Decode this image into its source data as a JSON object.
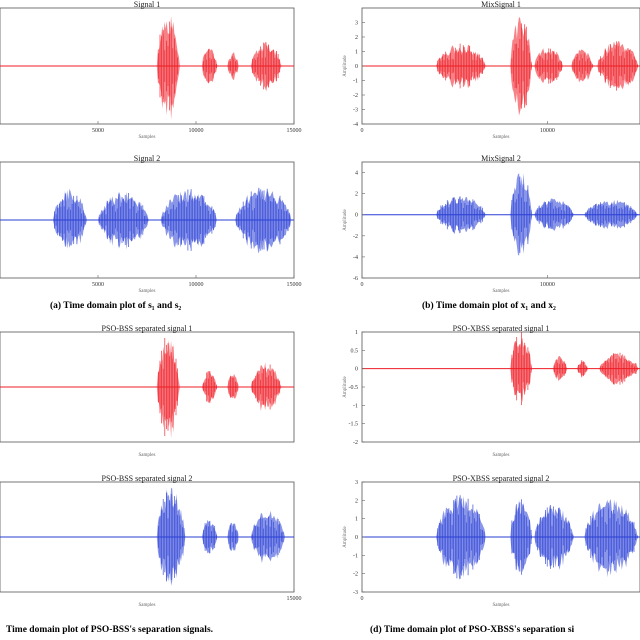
{
  "colors": {
    "red": "#ee1c25",
    "blue": "#2a3fd6",
    "frame": "#555555",
    "axis": "#666666"
  },
  "captions": {
    "a": "(a) Time domain plot of s₁ and s₂",
    "b": "(b) Time domain plot of x₁ and x₂",
    "c": "Time domain plot of PSO-BSS's separation signals.",
    "d": "(d) Time domain plot of PSO-XBSS's separation si"
  },
  "chart_data": [
    {
      "id": "s1",
      "type": "line",
      "title": "Signal 1",
      "color": "red",
      "xlabel": "Samples",
      "ylabel": "",
      "xlim": [
        0,
        15000
      ],
      "ylim": [
        -1,
        1
      ],
      "xticks": [
        5000,
        10000,
        15000
      ],
      "xtick_labels": [
        "5000",
        "10000",
        "15000"
      ],
      "yticks": [],
      "ytick_labels": [],
      "bursts": [
        {
          "start": 8000,
          "end": 9200,
          "amp": 0.95
        },
        {
          "start": 10300,
          "end": 11100,
          "amp": 0.35
        },
        {
          "start": 11600,
          "end": 12200,
          "amp": 0.25
        },
        {
          "start": 12800,
          "end": 14400,
          "amp": 0.45
        }
      ]
    },
    {
      "id": "x1",
      "type": "line",
      "title": "MixSignal 1",
      "color": "red",
      "xlabel": "Samples",
      "ylabel": "Amplitude",
      "xlim": [
        0,
        15000
      ],
      "ylim": [
        -4,
        4
      ],
      "xticks": [
        0,
        10000
      ],
      "xtick_labels": [
        "0",
        "10000"
      ],
      "yticks": [
        3,
        2,
        1,
        0,
        -1,
        -2,
        -3,
        -4
      ],
      "ytick_labels": [
        "3",
        "2",
        "1",
        "0",
        "-1",
        "-2",
        "-3",
        "-4"
      ],
      "bursts": [
        {
          "start": 4000,
          "end": 6800,
          "amp": 1.6
        },
        {
          "start": 8000,
          "end": 9200,
          "amp": 3.6
        },
        {
          "start": 9300,
          "end": 10900,
          "amp": 1.4
        },
        {
          "start": 11300,
          "end": 12500,
          "amp": 1.2
        },
        {
          "start": 12700,
          "end": 15000,
          "amp": 1.8
        }
      ]
    },
    {
      "id": "s2",
      "type": "line",
      "title": "Signal 2",
      "color": "blue",
      "xlabel": "Samples",
      "ylabel": "",
      "xlim": [
        0,
        15000
      ],
      "ylim": [
        -1,
        1
      ],
      "xticks": [
        5000,
        10000,
        15000
      ],
      "xtick_labels": [
        "5000",
        "10000",
        "15000"
      ],
      "yticks": [],
      "ytick_labels": [],
      "bursts": [
        {
          "start": 2700,
          "end": 4500,
          "amp": 0.55
        },
        {
          "start": 5000,
          "end": 7700,
          "amp": 0.5
        },
        {
          "start": 8200,
          "end": 11200,
          "amp": 0.55
        },
        {
          "start": 12000,
          "end": 15000,
          "amp": 0.6
        }
      ]
    },
    {
      "id": "x2",
      "type": "line",
      "title": "MixSignal 2",
      "color": "blue",
      "xlabel": "Samples",
      "ylabel": "Amplitude",
      "xlim": [
        0,
        15000
      ],
      "ylim": [
        -6,
        5
      ],
      "xticks": [
        0,
        10000
      ],
      "xtick_labels": [
        "0",
        "10000"
      ],
      "yticks": [
        4,
        2,
        0,
        -2,
        -4,
        -6
      ],
      "ytick_labels": [
        "4",
        "2",
        "0",
        "-2",
        "-4",
        "-6"
      ],
      "bursts": [
        {
          "start": 4000,
          "end": 6800,
          "amp": 1.8
        },
        {
          "start": 8000,
          "end": 9200,
          "amp": 4.2
        },
        {
          "start": 9300,
          "end": 11500,
          "amp": 1.6
        },
        {
          "start": 12000,
          "end": 15000,
          "amp": 1.5
        }
      ]
    },
    {
      "id": "p1",
      "type": "line",
      "title": "PSO-BSS separated signal 1",
      "color": "red",
      "xlabel": "Samples",
      "ylabel": "",
      "xlim": [
        0,
        15000
      ],
      "ylim": [
        -1,
        1
      ],
      "xticks": [],
      "xtick_labels": [],
      "yticks": [],
      "ytick_labels": [],
      "bursts": [
        {
          "start": 8000,
          "end": 9200,
          "amp": 0.95
        },
        {
          "start": 10300,
          "end": 11100,
          "amp": 0.3
        },
        {
          "start": 11600,
          "end": 12200,
          "amp": 0.25
        },
        {
          "start": 12800,
          "end": 14400,
          "amp": 0.45
        }
      ]
    },
    {
      "id": "q1",
      "type": "line",
      "title": "PSO-XBSS separated signal 1",
      "color": "red",
      "xlabel": "Samples",
      "ylabel": "Amplitude",
      "xlim": [
        0,
        15000
      ],
      "ylim": [
        -2,
        1
      ],
      "xticks": [],
      "xtick_labels": [],
      "yticks": [
        1,
        0.5,
        0,
        -0.5,
        -1,
        -1.5,
        -2
      ],
      "ytick_labels": [
        "1",
        "0.5",
        "0",
        "-0.5",
        "-1",
        "-1.5",
        "-2"
      ],
      "bursts": [
        {
          "start": 8000,
          "end": 9200,
          "amp": 1.0
        },
        {
          "start": 10300,
          "end": 11100,
          "amp": 0.35
        },
        {
          "start": 11600,
          "end": 12200,
          "amp": 0.25
        },
        {
          "start": 12800,
          "end": 15000,
          "amp": 0.45
        }
      ]
    },
    {
      "id": "p2",
      "type": "line",
      "title": "PSO-BSS separated signal 2",
      "color": "blue",
      "xlabel": "Samples",
      "ylabel": "",
      "xlim": [
        0,
        15000
      ],
      "ylim": [
        -1,
        1
      ],
      "xticks": [
        15000
      ],
      "xtick_labels": [
        "15000"
      ],
      "yticks": [],
      "ytick_labels": [],
      "bursts": [
        {
          "start": 8000,
          "end": 9500,
          "amp": 0.95
        },
        {
          "start": 10300,
          "end": 11100,
          "amp": 0.35
        },
        {
          "start": 11600,
          "end": 12200,
          "amp": 0.3
        },
        {
          "start": 12800,
          "end": 14600,
          "amp": 0.5
        }
      ]
    },
    {
      "id": "q2",
      "type": "line",
      "title": "PSO-XBSS separated signal 2",
      "color": "blue",
      "xlabel": "Samples",
      "ylabel": "Amplitude",
      "xlim": [
        0,
        15000
      ],
      "ylim": [
        -3,
        3
      ],
      "xticks": [
        0
      ],
      "xtick_labels": [
        "0"
      ],
      "yticks": [
        3,
        2,
        1,
        0,
        -1,
        -2,
        -3
      ],
      "ytick_labels": [
        "3",
        "2",
        "1",
        "0",
        "-1",
        "-2",
        "-3"
      ],
      "bursts": [
        {
          "start": 4000,
          "end": 6800,
          "amp": 2.4
        },
        {
          "start": 8000,
          "end": 9200,
          "amp": 2.2
        },
        {
          "start": 9300,
          "end": 11500,
          "amp": 1.8
        },
        {
          "start": 12000,
          "end": 15000,
          "amp": 2.2
        }
      ]
    }
  ]
}
